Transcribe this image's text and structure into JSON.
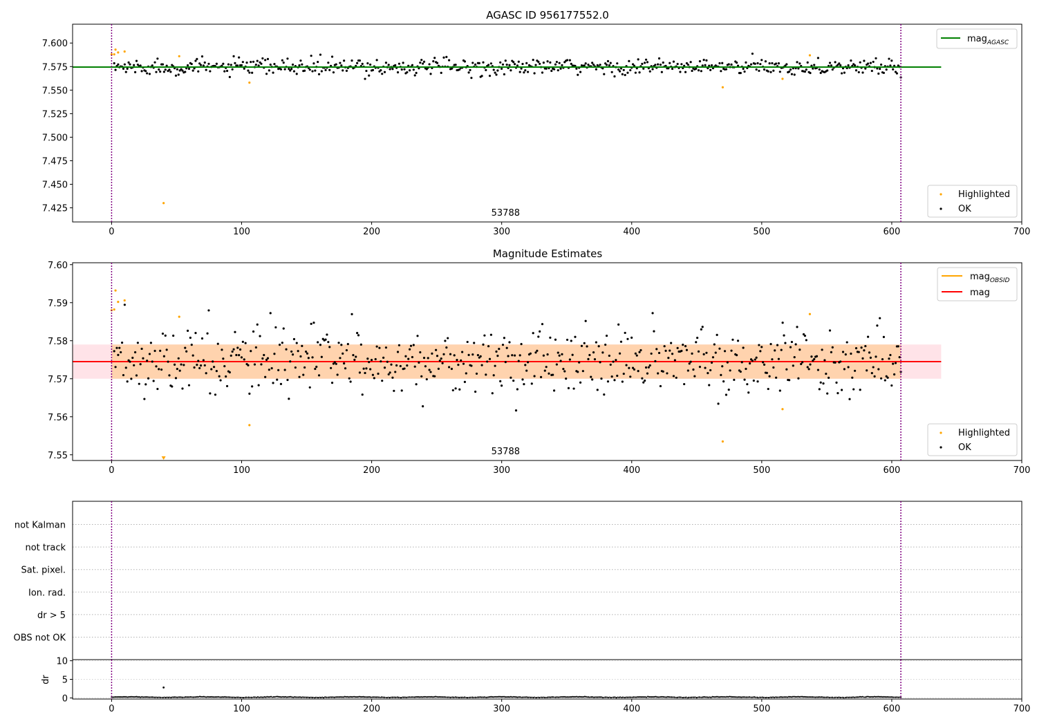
{
  "chart_data": [
    {
      "type": "scatter",
      "title": "AGASC ID 956177552.0",
      "xlim": [
        -30,
        700
      ],
      "ylim": [
        7.41,
        7.62
      ],
      "x_ticks": [
        0,
        100,
        200,
        300,
        400,
        500,
        600,
        700
      ],
      "x_tick_labels": [
        "0",
        "100",
        "200",
        "300",
        "400",
        "500",
        "600",
        "700"
      ],
      "y_ticks": [
        7.425,
        7.45,
        7.475,
        7.5,
        7.525,
        7.55,
        7.575,
        7.6
      ],
      "y_tick_labels": [
        "7.425",
        "7.450",
        "7.475",
        "7.500",
        "7.525",
        "7.550",
        "7.575",
        "7.600"
      ],
      "annotation": {
        "text": "53788",
        "x": 303
      },
      "vlines": [
        0,
        607
      ],
      "hline": {
        "name": "mag_AGASC",
        "y": 7.5745,
        "x_range": [
          -30,
          638
        ],
        "color": "#008000"
      },
      "legend_lines": [
        {
          "label": "mag",
          "subscript": "AGASC",
          "color": "#008000"
        }
      ],
      "legend_points": [
        {
          "label": "Highlighted",
          "color": "#ffa500"
        },
        {
          "label": "OK",
          "color": "#000000"
        }
      ],
      "ok_series": {
        "n": 600,
        "x_range": [
          2,
          607
        ],
        "center": 7.5745,
        "spread": 0.0045
      },
      "highlighted_points": [
        {
          "x": 0,
          "y": 7.588
        },
        {
          "x": 2,
          "y": 7.588
        },
        {
          "x": 3,
          "y": 7.593
        },
        {
          "x": 5,
          "y": 7.59
        },
        {
          "x": 10,
          "y": 7.591
        },
        {
          "x": 40,
          "y": 7.43
        },
        {
          "x": 52,
          "y": 7.586
        },
        {
          "x": 106,
          "y": 7.558
        },
        {
          "x": 470,
          "y": 7.553
        },
        {
          "x": 516,
          "y": 7.562
        },
        {
          "x": 537,
          "y": 7.587
        }
      ]
    },
    {
      "type": "scatter",
      "title": "Magnitude Estimates",
      "xlim": [
        -30,
        700
      ],
      "ylim": [
        7.5485,
        7.6005
      ],
      "x_ticks": [
        0,
        100,
        200,
        300,
        400,
        500,
        600,
        700
      ],
      "x_tick_labels": [
        "0",
        "100",
        "200",
        "300",
        "400",
        "500",
        "600",
        "700"
      ],
      "y_ticks": [
        7.55,
        7.56,
        7.57,
        7.58,
        7.59,
        7.6
      ],
      "y_tick_labels": [
        "7.55",
        "7.56",
        "7.57",
        "7.58",
        "7.59",
        "7.60"
      ],
      "annotation": {
        "text": "53788",
        "x": 303
      },
      "vlines": [
        0,
        607
      ],
      "mag_line": {
        "y": 7.5745,
        "x_range": [
          -30,
          638
        ],
        "color": "#ff0000"
      },
      "mag_band": {
        "y_low": 7.57,
        "y_high": 7.579,
        "x_range": [
          -30,
          638
        ],
        "color": "#ffc0cb"
      },
      "obsid_band": {
        "y_low": 7.57,
        "y_high": 7.579,
        "x_range": [
          0,
          607
        ],
        "color": "#ffa500"
      },
      "legend_lines": [
        {
          "label": "mag",
          "subscript": "OBSID",
          "color": "#ffa500"
        },
        {
          "label": "mag",
          "subscript": "",
          "color": "#ff0000"
        }
      ],
      "legend_points": [
        {
          "label": "Highlighted",
          "color": "#ffa500"
        },
        {
          "label": "OK",
          "color": "#000000"
        }
      ],
      "ok_series": {
        "n": 600,
        "x_range": [
          2,
          607
        ],
        "center": 7.5745,
        "spread": 0.0045
      },
      "highlighted_points": [
        {
          "x": 0,
          "y": 7.588
        },
        {
          "x": 2,
          "y": 7.5882
        },
        {
          "x": 3,
          "y": 7.5932
        },
        {
          "x": 5,
          "y": 7.5902
        },
        {
          "x": 10,
          "y": 7.5906
        },
        {
          "x": 52,
          "y": 7.5863
        },
        {
          "x": 106,
          "y": 7.5578
        },
        {
          "x": 470,
          "y": 7.5535
        },
        {
          "x": 516,
          "y": 7.562
        },
        {
          "x": 537,
          "y": 7.587
        }
      ],
      "below_range_markers": [
        {
          "x": 40
        }
      ]
    },
    {
      "type": "scatter",
      "title": "",
      "xlim": [
        -30,
        700
      ],
      "categories": [
        "OBS not OK",
        "dr > 5",
        "Ion. rad.",
        "Sat. pixel.",
        "not track",
        "not Kalman"
      ],
      "vlines": [
        0,
        607
      ],
      "flagged_points": []
    },
    {
      "type": "scatter",
      "title": "",
      "ylabel": "dr",
      "xlim": [
        -30,
        700
      ],
      "ylim": [
        -0.3,
        10.3
      ],
      "x_ticks": [
        0,
        100,
        200,
        300,
        400,
        500,
        600,
        700
      ],
      "x_tick_labels": [
        "0",
        "100",
        "200",
        "300",
        "400",
        "500",
        "600",
        "700"
      ],
      "y_ticks": [
        0,
        5,
        10
      ],
      "y_tick_labels": [
        "0",
        "5",
        "10"
      ],
      "vlines": [
        0,
        607
      ],
      "series": {
        "n": 600,
        "x_range": [
          0,
          607
        ],
        "base": 0.2,
        "spread": 0.12
      },
      "spikes": [
        {
          "x": 40,
          "y": 2.8
        }
      ]
    }
  ]
}
